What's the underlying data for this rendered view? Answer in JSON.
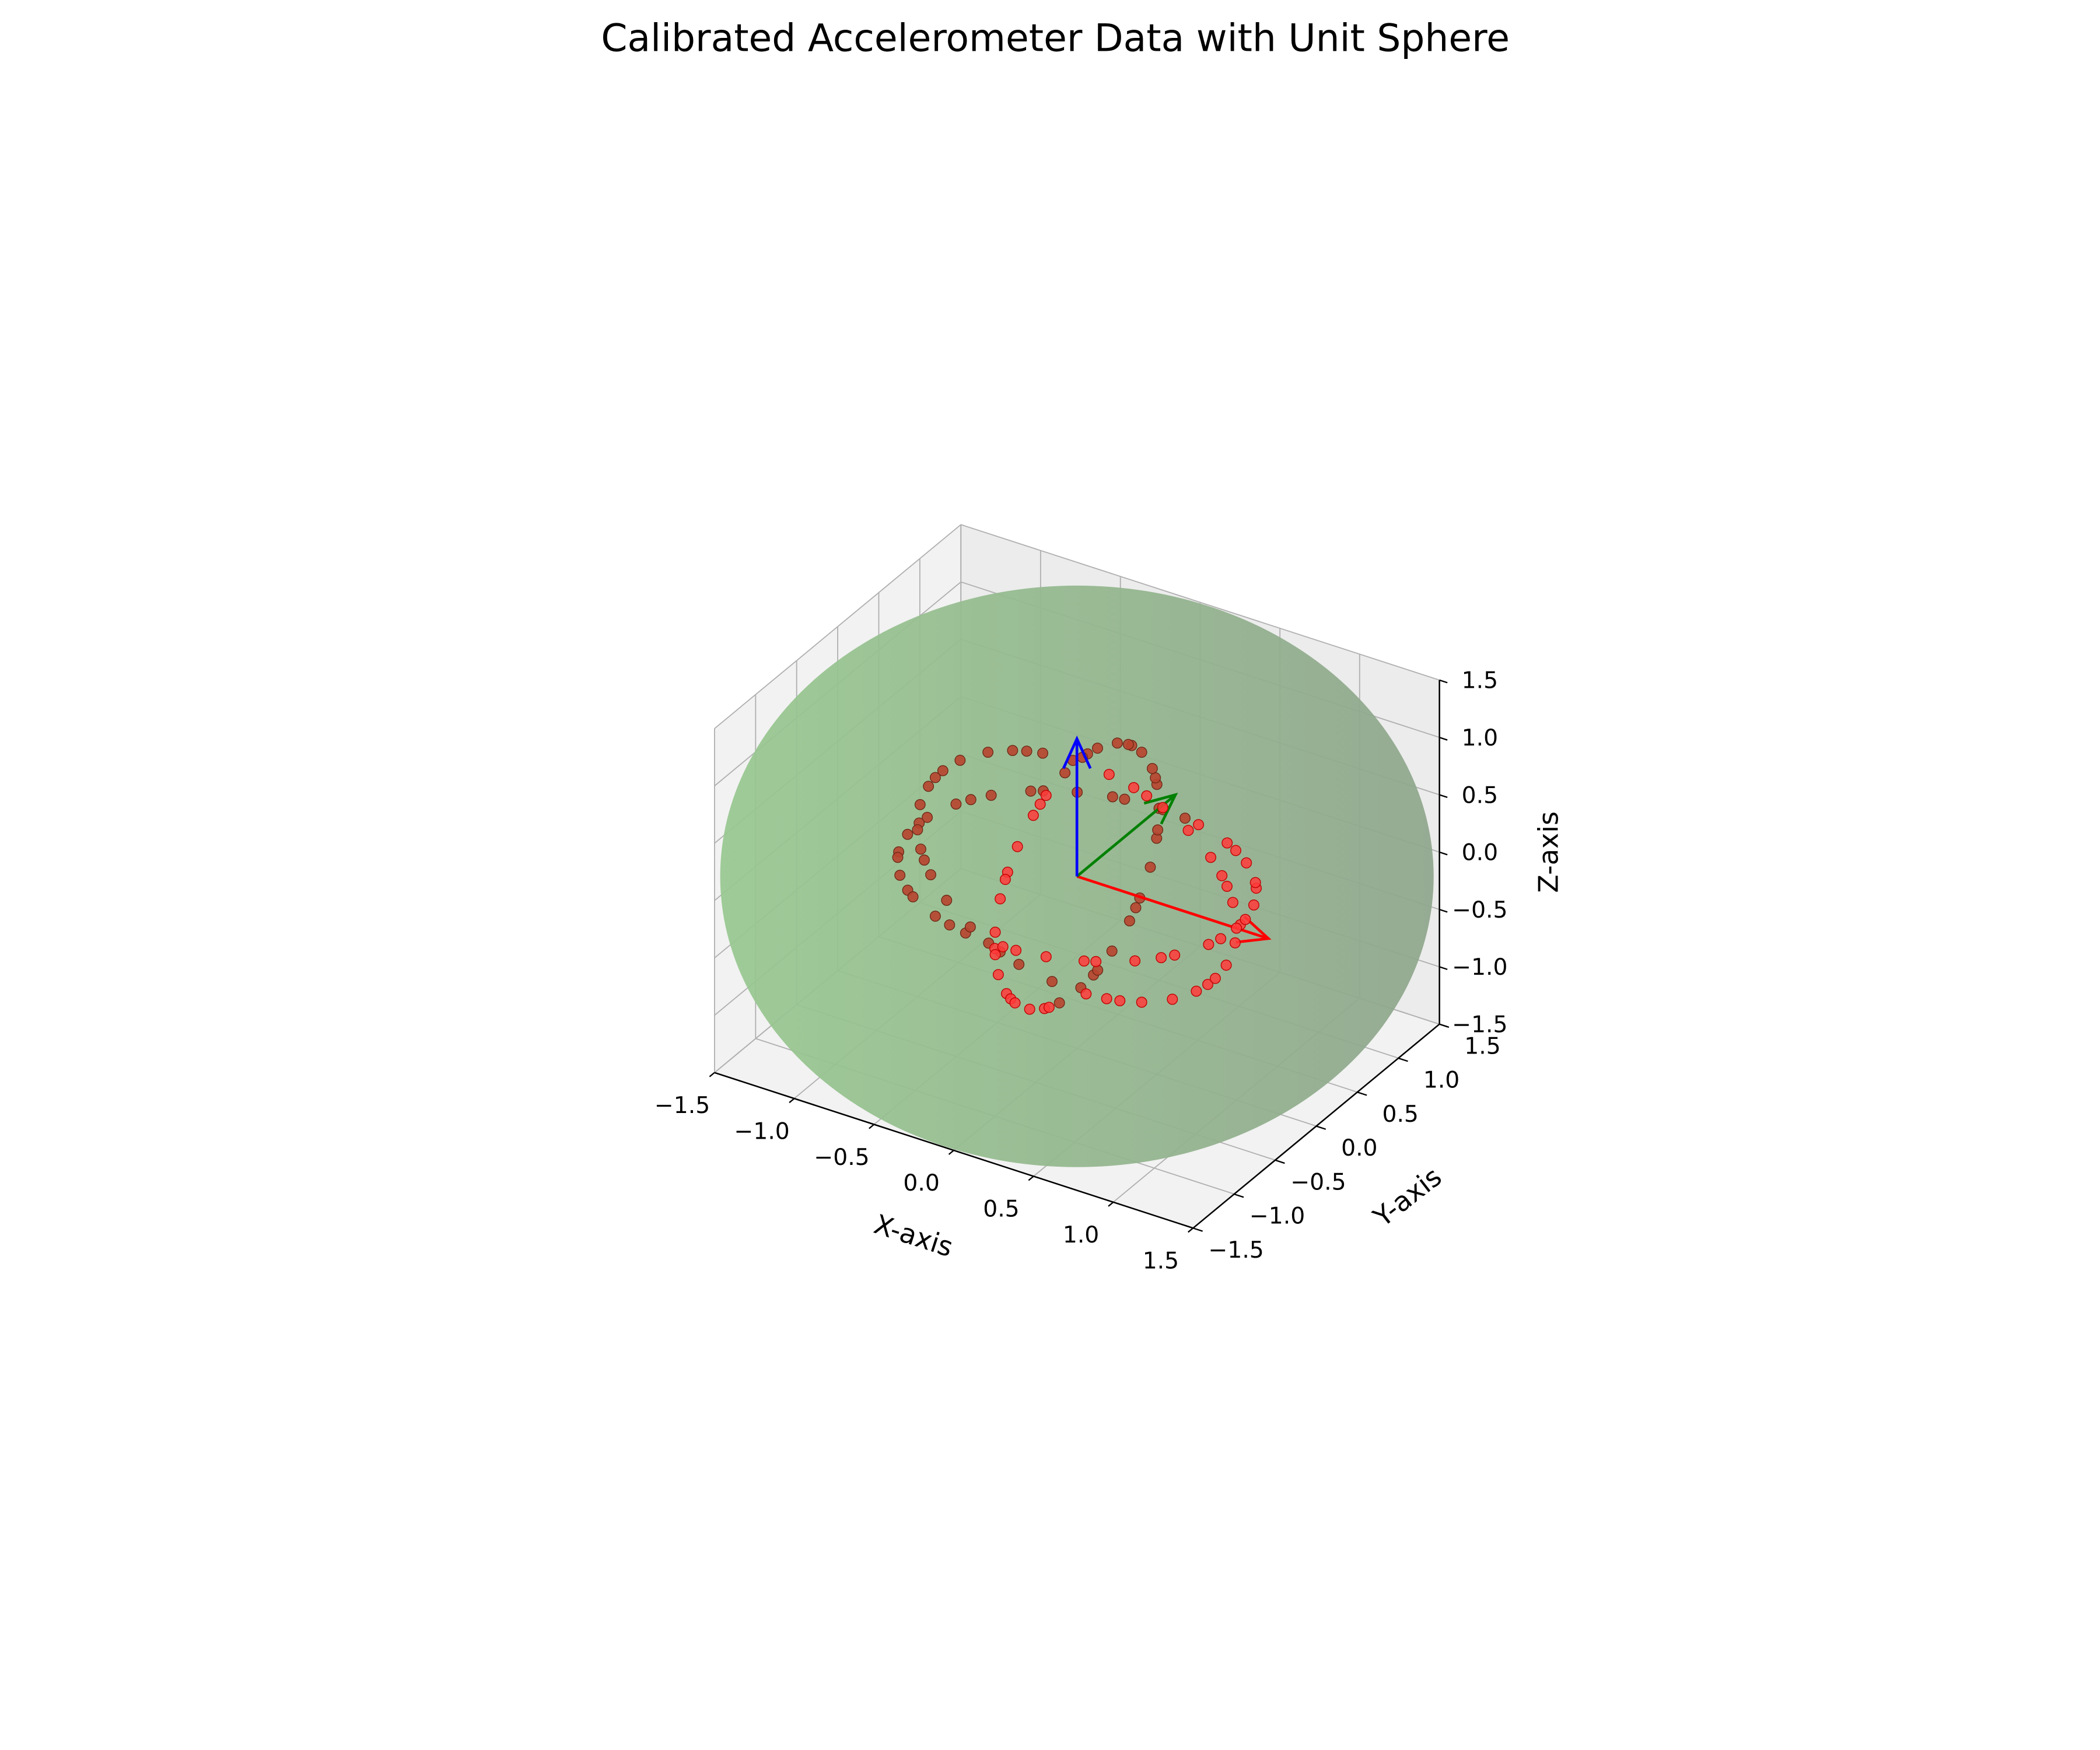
{
  "chart_data": {
    "type": "scatter",
    "projection": "3d",
    "title": "Calibrated Accelerometer Data with Unit Sphere",
    "xlabel": "X-axis",
    "ylabel": "Y-axis",
    "zlabel": "Z-axis",
    "xlim": [
      -1.5,
      1.5
    ],
    "ylim": [
      -1.5,
      1.5
    ],
    "zlim": [
      -1.5,
      1.5
    ],
    "xticks": [
      "−1.5",
      "−1.0",
      "−0.5",
      "0.0",
      "0.5",
      "1.0",
      "1.5"
    ],
    "yticks": [
      "−1.5",
      "−1.0",
      "−0.5",
      "0.0",
      "0.5",
      "1.0",
      "1.5"
    ],
    "zticks": [
      "−1.5",
      "−1.0",
      "−0.5",
      "0.0",
      "0.5",
      "1.0",
      "1.5"
    ],
    "grid": true,
    "sphere": {
      "center": [
        0,
        0,
        0
      ],
      "radius": 1.0,
      "color": "#6fba6f",
      "alpha": 0.5
    },
    "vectors": [
      {
        "axis": "x",
        "from": [
          0,
          0,
          0
        ],
        "to": [
          1.2,
          0,
          0
        ],
        "color": "#ff0000"
      },
      {
        "axis": "y",
        "from": [
          0,
          0,
          0
        ],
        "to": [
          0,
          1.2,
          0
        ],
        "color": "#008000"
      },
      {
        "axis": "z",
        "from": [
          0,
          0,
          0
        ],
        "to": [
          0,
          0,
          1.2
        ],
        "color": "#0000ff"
      }
    ],
    "point_color": "#ff0000",
    "traces": [
      {
        "description": "rotation about x-axis (y-z plane)",
        "x": 0.0,
        "y_range": "cos(t)",
        "z_range": "sin(t)",
        "count": 40
      },
      {
        "description": "rotation about z-axis (x-y plane)",
        "z": 0.0,
        "count": 40
      },
      {
        "description": "rotation about y-axis (x-z plane)",
        "y": 0.0,
        "count": 40
      }
    ]
  }
}
